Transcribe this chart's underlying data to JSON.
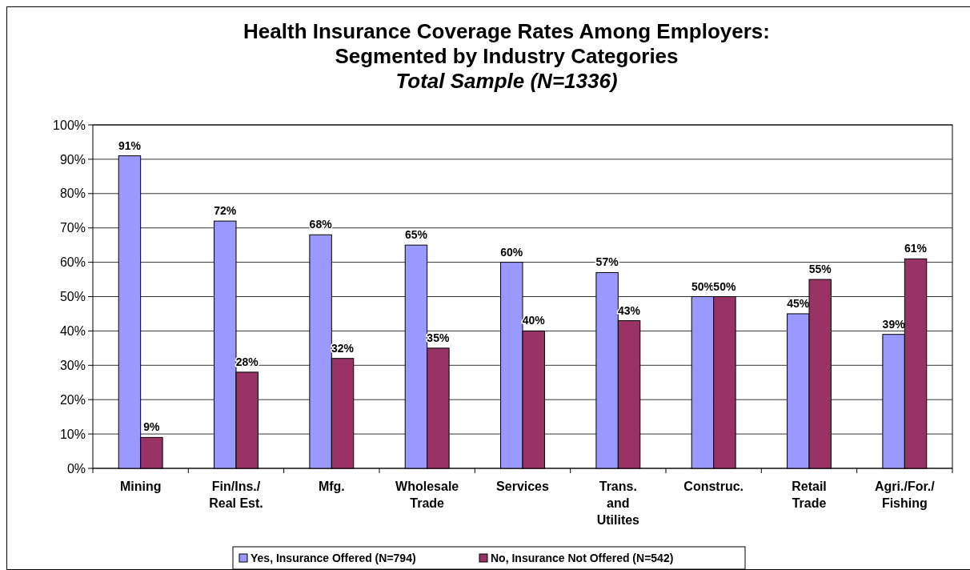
{
  "chart_data": {
    "type": "bar",
    "title": "Health Insurance Coverage Rates Among Employers:\nSegmented by Industry Categories",
    "subtitle": "Total Sample (N=1336)",
    "categories": [
      "Mining",
      "Fin/Ins./\nReal Est.",
      "Mfg.",
      "Wholesale\nTrade",
      "Services",
      "Trans.\nand\nUtilites",
      "Construc.",
      "Retail\nTrade",
      "Agri./For./\nFishing"
    ],
    "series": [
      {
        "name": "Yes, Insurance Offered (N=794)",
        "color": "#9999ff",
        "values": [
          91,
          72,
          68,
          65,
          60,
          57,
          50,
          45,
          39
        ],
        "value_labels": [
          "91%",
          "72%",
          "68%",
          "65%",
          "60%",
          "57%",
          "50%",
          "45%",
          "39%"
        ]
      },
      {
        "name": "No, Insurance Not Offered (N=542)",
        "color": "#993366",
        "values": [
          9,
          28,
          32,
          35,
          40,
          43,
          50,
          55,
          61
        ],
        "value_labels": [
          "9%",
          "28%",
          "32%",
          "35%",
          "40%",
          "43%",
          "50%",
          "55%",
          "61%"
        ]
      }
    ],
    "ylim": [
      0,
      100
    ],
    "yticks": [
      {
        "value": 0,
        "label": "0%"
      },
      {
        "value": 10,
        "label": "10%"
      },
      {
        "value": 20,
        "label": "20%"
      },
      {
        "value": 30,
        "label": "30%"
      },
      {
        "value": 40,
        "label": "40%"
      },
      {
        "value": 50,
        "label": "50%"
      },
      {
        "value": 60,
        "label": "60%"
      },
      {
        "value": 70,
        "label": "70%"
      },
      {
        "value": 80,
        "label": "80%"
      },
      {
        "value": 90,
        "label": "90%"
      },
      {
        "value": 100,
        "label": "100%"
      }
    ],
    "grid": "y",
    "legend": "bottom"
  }
}
